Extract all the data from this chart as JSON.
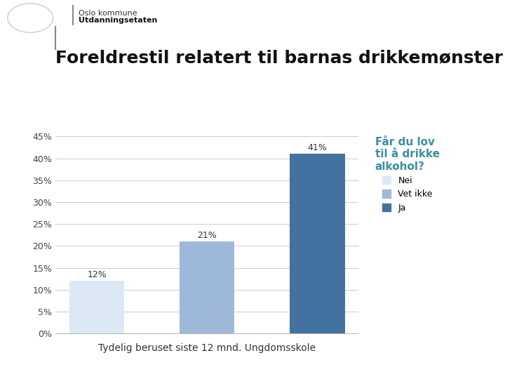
{
  "title": "Foreldrestil relatert til barnas drikkemønster",
  "xlabel": "Tydelig beruset siste 12 mnd. Ungdomsskole",
  "header_line1": "Oslo kommune",
  "header_line2": "Utdanningsetaten",
  "categories": [
    "Nei",
    "Vet ikke",
    "Ja"
  ],
  "values": [
    0.12,
    0.21,
    0.41
  ],
  "bar_colors": [
    "#dce9f5",
    "#9db8d9",
    "#4472a0"
  ],
  "ylim": [
    0,
    0.45
  ],
  "yticks": [
    0.0,
    0.05,
    0.1,
    0.15,
    0.2,
    0.25,
    0.3,
    0.35,
    0.4,
    0.45
  ],
  "legend_title": "Får du lov\ntil å drikke\nalkohol?",
  "legend_title_color": "#3a8fa0",
  "legend_labels": [
    "Nei",
    "Vet ikke",
    "Ja"
  ],
  "legend_colors": [
    "#dce9f5",
    "#9db8d9",
    "#4472a0"
  ],
  "bar_labels": [
    "12%",
    "21%",
    "41%"
  ],
  "background_color": "#ffffff",
  "grid_color": "#cccccc",
  "title_fontsize": 18,
  "axis_fontsize": 10,
  "label_fontsize": 9,
  "header_line1_fontsize": 8,
  "header_line2_fontsize": 8
}
